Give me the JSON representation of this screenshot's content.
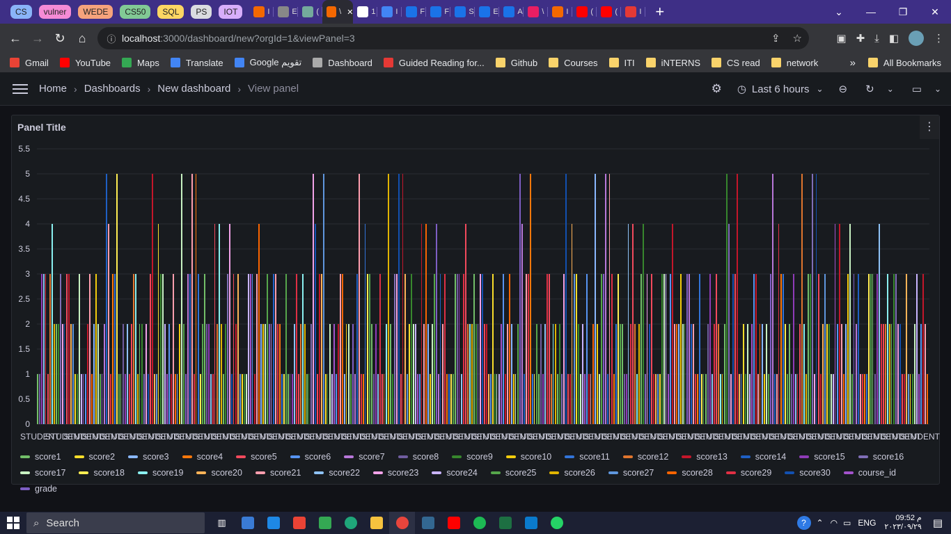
{
  "browser": {
    "tab_groups": [
      {
        "label": "CS",
        "color": "#8ab4f8"
      },
      {
        "label": "vulner",
        "color": "#f58bd6"
      },
      {
        "label": "WEDE",
        "color": "#f6a37c"
      },
      {
        "label": "CS50",
        "color": "#81c995"
      },
      {
        "label": "SQL",
        "color": "#fdd663"
      },
      {
        "label": "PS",
        "color": "#dadce0"
      },
      {
        "label": "IOT",
        "color": "#d7aefb"
      }
    ],
    "tabs": [
      {
        "text": "I",
        "color": "#f46800"
      },
      {
        "text": "E",
        "color": "#888"
      },
      {
        "text": "(",
        "color": "#74aa9c"
      },
      {
        "text": "\\",
        "color": "#f46800",
        "active": true
      },
      {
        "text": "1",
        "color": "#fff"
      },
      {
        "text": "I",
        "color": "#4285f4"
      },
      {
        "text": "F",
        "color": "#1a73e8"
      },
      {
        "text": "F",
        "color": "#1a73e8"
      },
      {
        "text": "S",
        "color": "#1a73e8"
      },
      {
        "text": "E",
        "color": "#1a73e8"
      },
      {
        "text": "A",
        "color": "#1a73e8"
      },
      {
        "text": "\\",
        "color": "#e91e63"
      },
      {
        "text": "I",
        "color": "#f46800"
      },
      {
        "text": "(",
        "color": "#ff0000"
      },
      {
        "text": "(",
        "color": "#ff0000"
      },
      {
        "text": "I",
        "color": "#e53935"
      }
    ],
    "url_host": "localhost",
    "url_path": ":3000/dashboard/new?orgId=1&viewPanel=3",
    "bookmarks": [
      {
        "label": "Gmail",
        "color": "#ea4335"
      },
      {
        "label": "YouTube",
        "color": "#ff0000"
      },
      {
        "label": "Maps",
        "color": "#34a853"
      },
      {
        "label": "Translate",
        "color": "#4285f4"
      },
      {
        "label": "Google تقويم",
        "color": "#4285f4"
      },
      {
        "label": "Dashboard",
        "color": "#aaaaaa"
      },
      {
        "label": "Guided Reading for...",
        "color": "#e53935"
      },
      {
        "label": "Github",
        "color": "#f9d36b"
      },
      {
        "label": "Courses",
        "color": "#f9d36b"
      },
      {
        "label": "ITI",
        "color": "#f9d36b"
      },
      {
        "label": "iNTERNS",
        "color": "#f9d36b"
      },
      {
        "label": "CS read",
        "color": "#f9d36b"
      },
      {
        "label": "network",
        "color": "#f9d36b"
      }
    ],
    "bookmarks_more": "»",
    "all_bookmarks": "All Bookmarks"
  },
  "grafana": {
    "breadcrumbs": [
      "Home",
      "Dashboards",
      "New dashboard",
      "View panel"
    ],
    "time_range": "Last 6 hours"
  },
  "panel": {
    "title": "Panel Title"
  },
  "chart_data": {
    "type": "bar",
    "title": "Panel Title",
    "y_ticks": [
      "0",
      "0.5",
      "1",
      "1.5",
      "2",
      "2.5",
      "3",
      "3.5",
      "4",
      "4.5",
      "5",
      "5.5"
    ],
    "ylim": [
      0,
      5.5
    ],
    "x_tick_label": "STUDENT",
    "x_tick_count": 48,
    "series_names": [
      "score1",
      "score2",
      "score3",
      "score4",
      "score5",
      "score6",
      "score7",
      "score8",
      "score9",
      "score10",
      "score11",
      "score12",
      "score13",
      "score14",
      "score15",
      "score16",
      "score17",
      "score18",
      "score19",
      "score20",
      "score21",
      "score22",
      "score23",
      "score24",
      "score25",
      "score26",
      "score27",
      "score28",
      "score29",
      "score30",
      "course_id",
      "grade"
    ],
    "series_colors": [
      "#73bf69",
      "#fade2a",
      "#8ab8ff",
      "#ff780a",
      "#f2495c",
      "#5794f2",
      "#b877d9",
      "#705da0",
      "#37872d",
      "#f2cc0c",
      "#3274d9",
      "#e0752d",
      "#c4162a",
      "#1f60c4",
      "#8f3bb8",
      "#806eb7",
      "#c8f2c2",
      "#ffee52",
      "#8af0f0",
      "#ffb357",
      "#ff9eae",
      "#8ec2f5",
      "#f2a2e8",
      "#c9b4ff",
      "#56a64b",
      "#e0b400",
      "#5f97de",
      "#fa6400",
      "#e02f44",
      "#1250b0",
      "#a352cc",
      "#7e5ec4"
    ],
    "value_pattern": [
      1,
      2,
      3,
      2,
      1,
      1,
      2,
      5,
      3,
      2,
      1,
      4,
      2,
      1,
      3,
      2,
      1,
      1,
      2,
      3,
      1,
      2,
      1,
      5,
      2,
      1,
      3,
      4,
      2,
      1,
      2,
      3,
      1,
      2,
      1,
      1,
      3,
      2,
      4,
      1,
      2,
      2,
      1,
      3,
      5,
      2,
      1,
      4,
      2,
      3,
      1,
      2,
      1,
      3,
      2,
      1,
      2,
      4,
      1,
      2,
      3,
      1,
      5,
      2,
      1,
      3
    ]
  },
  "taskbar": {
    "search_placeholder": "Search",
    "lang": "ENG",
    "time": "09:52 م",
    "date": "٢٠٢٣/٠٩/٢٩"
  }
}
